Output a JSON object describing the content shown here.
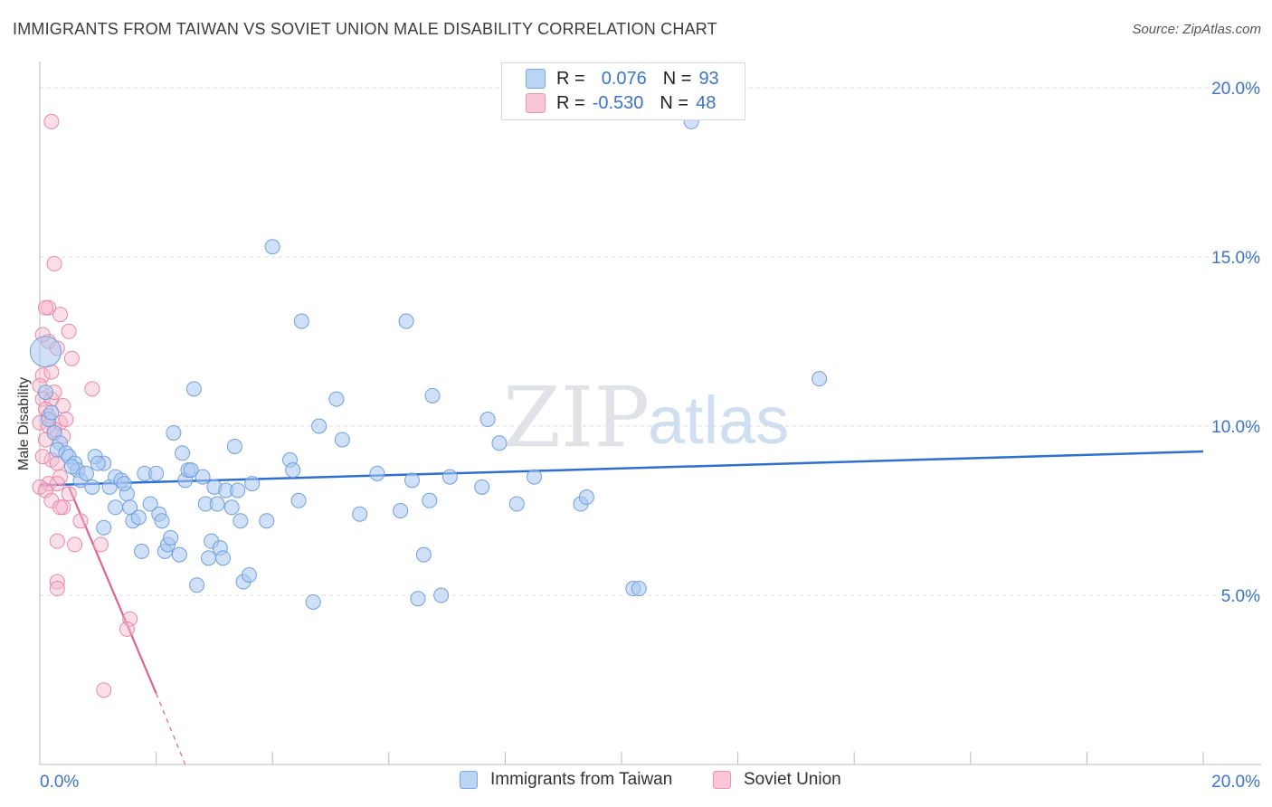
{
  "title": "IMMIGRANTS FROM TAIWAN VS SOVIET UNION MALE DISABILITY CORRELATION CHART",
  "source": "Source: ZipAtlas.com",
  "watermark": {
    "zip": "ZIP",
    "atlas": "atlas"
  },
  "colors": {
    "blue_fill": "#a9c8f0",
    "blue_stroke": "#6f9fe0",
    "blue_line": "#2f6fd0",
    "pink_fill": "#f7b9cc",
    "pink_stroke": "#ec86a7",
    "pink_line": "#e0628f",
    "axis_text": "#3b74c9",
    "grid": "#dcdcdc"
  },
  "legend": {
    "r_label": "R =",
    "n_label": "N =",
    "series": [
      {
        "name": "Immigrants from Taiwan",
        "r": "0.076",
        "n": "93"
      },
      {
        "name": "Soviet Union",
        "r": "-0.530",
        "n": "48"
      }
    ]
  },
  "chart_data": {
    "type": "scatter",
    "title": "IMMIGRANTS FROM TAIWAN VS SOVIET UNION MALE DISABILITY CORRELATION CHART",
    "xlabel": "",
    "ylabel": "Male Disability",
    "xlim": [
      0,
      20
    ],
    "ylim": [
      0,
      20
    ],
    "x_tick_labels": [
      "0.0%",
      "20.0%"
    ],
    "y_tick_labels": [
      "5.0%",
      "10.0%",
      "15.0%",
      "20.0%"
    ],
    "y_ticks": [
      5,
      10,
      15,
      20
    ],
    "x_ticks": [
      0,
      2,
      4,
      6,
      8,
      10,
      12,
      14,
      16,
      18,
      20
    ],
    "grid": true,
    "series": [
      {
        "name": "Immigrants from Taiwan",
        "color": "#a9c8f0",
        "points": [
          [
            0.1,
            12.2
          ],
          [
            0.1,
            11.0
          ],
          [
            0.15,
            10.2
          ],
          [
            0.25,
            9.8
          ],
          [
            0.35,
            9.5
          ],
          [
            0.3,
            9.3
          ],
          [
            0.45,
            9.2
          ],
          [
            0.5,
            9.1
          ],
          [
            0.6,
            8.9
          ],
          [
            0.65,
            8.7
          ],
          [
            0.7,
            8.4
          ],
          [
            0.8,
            8.6
          ],
          [
            0.9,
            8.2
          ],
          [
            1.1,
            8.9
          ],
          [
            1.2,
            8.2
          ],
          [
            1.3,
            8.5
          ],
          [
            1.4,
            8.4
          ],
          [
            1.1,
            7.0
          ],
          [
            1.3,
            7.6
          ],
          [
            1.5,
            8.0
          ],
          [
            1.55,
            7.6
          ],
          [
            1.6,
            7.2
          ],
          [
            1.7,
            7.3
          ],
          [
            1.8,
            8.6
          ],
          [
            1.75,
            6.3
          ],
          [
            2.0,
            8.6
          ],
          [
            1.9,
            7.7
          ],
          [
            2.05,
            7.4
          ],
          [
            2.1,
            7.2
          ],
          [
            2.15,
            6.3
          ],
          [
            2.2,
            6.5
          ],
          [
            2.25,
            6.7
          ],
          [
            2.3,
            9.8
          ],
          [
            2.4,
            6.2
          ],
          [
            2.45,
            9.2
          ],
          [
            2.5,
            8.4
          ],
          [
            2.55,
            8.7
          ],
          [
            2.6,
            8.7
          ],
          [
            2.65,
            11.1
          ],
          [
            2.8,
            8.5
          ],
          [
            2.85,
            7.7
          ],
          [
            2.9,
            6.1
          ],
          [
            2.95,
            6.6
          ],
          [
            3.0,
            8.2
          ],
          [
            3.1,
            6.4
          ],
          [
            3.15,
            6.1
          ],
          [
            3.2,
            8.1
          ],
          [
            3.3,
            7.6
          ],
          [
            3.35,
            9.4
          ],
          [
            3.4,
            8.1
          ],
          [
            3.45,
            7.2
          ],
          [
            3.5,
            5.4
          ],
          [
            3.6,
            5.6
          ],
          [
            3.65,
            8.3
          ],
          [
            3.9,
            7.2
          ],
          [
            4.0,
            15.3
          ],
          [
            4.3,
            9.0
          ],
          [
            4.35,
            8.7
          ],
          [
            4.45,
            7.8
          ],
          [
            4.5,
            13.1
          ],
          [
            4.7,
            4.8
          ],
          [
            4.8,
            10.0
          ],
          [
            5.1,
            10.8
          ],
          [
            5.2,
            9.6
          ],
          [
            5.5,
            7.4
          ],
          [
            5.8,
            8.6
          ],
          [
            6.2,
            7.5
          ],
          [
            6.3,
            13.1
          ],
          [
            6.4,
            8.4
          ],
          [
            6.5,
            4.9
          ],
          [
            6.6,
            6.2
          ],
          [
            6.7,
            7.8
          ],
          [
            6.75,
            10.9
          ],
          [
            6.9,
            5.0
          ],
          [
            7.05,
            8.5
          ],
          [
            7.6,
            8.2
          ],
          [
            7.7,
            10.2
          ],
          [
            7.9,
            9.5
          ],
          [
            8.2,
            7.7
          ],
          [
            8.5,
            8.5
          ],
          [
            9.3,
            7.7
          ],
          [
            9.4,
            7.9
          ],
          [
            10.2,
            5.2
          ],
          [
            10.3,
            5.2
          ],
          [
            11.2,
            19.0
          ],
          [
            13.4,
            11.4
          ],
          [
            0.2,
            10.4
          ],
          [
            0.55,
            8.8
          ],
          [
            0.95,
            9.1
          ],
          [
            1.0,
            8.9
          ],
          [
            1.45,
            8.3
          ],
          [
            2.7,
            5.3
          ],
          [
            3.05,
            7.7
          ]
        ]
      },
      {
        "name": "Soviet Union",
        "color": "#f7b9cc",
        "points": [
          [
            0.2,
            19.0
          ],
          [
            0.25,
            14.8
          ],
          [
            0.15,
            13.5
          ],
          [
            0.1,
            13.5
          ],
          [
            0.35,
            13.3
          ],
          [
            0.5,
            12.8
          ],
          [
            0.15,
            12.5
          ],
          [
            0.3,
            12.3
          ],
          [
            0.55,
            12.0
          ],
          [
            0.05,
            11.5
          ],
          [
            0.2,
            11.6
          ],
          [
            0.0,
            11.2
          ],
          [
            0.9,
            11.1
          ],
          [
            0.05,
            10.8
          ],
          [
            0.2,
            10.8
          ],
          [
            0.4,
            10.6
          ],
          [
            0.1,
            10.5
          ],
          [
            0.15,
            10.3
          ],
          [
            0.0,
            10.1
          ],
          [
            0.35,
            10.1
          ],
          [
            0.25,
            9.9
          ],
          [
            0.4,
            9.7
          ],
          [
            0.1,
            9.6
          ],
          [
            0.2,
            9.0
          ],
          [
            0.3,
            8.9
          ],
          [
            0.35,
            8.5
          ],
          [
            0.15,
            8.3
          ],
          [
            0.3,
            8.3
          ],
          [
            0.0,
            8.2
          ],
          [
            0.1,
            8.1
          ],
          [
            0.2,
            7.8
          ],
          [
            0.4,
            7.6
          ],
          [
            0.35,
            7.6
          ],
          [
            0.7,
            7.2
          ],
          [
            0.3,
            6.6
          ],
          [
            0.6,
            6.5
          ],
          [
            1.05,
            6.5
          ],
          [
            0.3,
            5.4
          ],
          [
            0.3,
            5.2
          ],
          [
            1.55,
            4.3
          ],
          [
            1.5,
            4.0
          ],
          [
            1.1,
            2.2
          ],
          [
            0.05,
            12.7
          ],
          [
            0.25,
            11.0
          ],
          [
            0.15,
            10.0
          ],
          [
            0.45,
            10.2
          ],
          [
            0.05,
            9.1
          ],
          [
            0.5,
            8.0
          ]
        ]
      }
    ],
    "trendlines": [
      {
        "series": "Immigrants from Taiwan",
        "from": [
          0,
          8.25
        ],
        "to": [
          20,
          9.25
        ],
        "style": "solid"
      },
      {
        "series": "Soviet Union",
        "from": [
          0.5,
          8.2
        ],
        "to": [
          2.0,
          2.1
        ],
        "style": "solid"
      },
      {
        "series": "Soviet Union",
        "from": [
          2.0,
          2.1
        ],
        "to": [
          2.5,
          0.0
        ],
        "style": "dashed"
      }
    ]
  }
}
